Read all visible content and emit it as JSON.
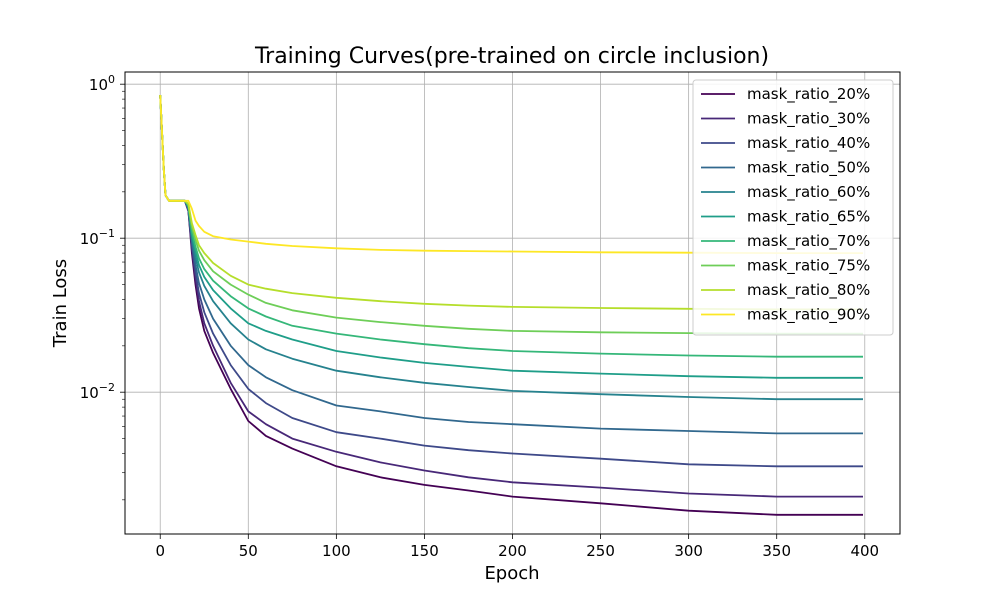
{
  "chart_data": {
    "type": "line",
    "title": "Training Curves(pre-trained on circle inclusion)",
    "xlabel": "Epoch",
    "ylabel": "Train Loss",
    "xlim": [
      -20,
      420
    ],
    "ylim": [
      0.0012,
      1.2
    ],
    "yscale": "log",
    "grid": true,
    "legend_position": "top-right",
    "x_ticks": [
      0,
      50,
      100,
      150,
      200,
      250,
      300,
      350,
      400
    ],
    "y_ticks": [
      {
        "value": 1,
        "mantissa": "10",
        "exponent": "0"
      },
      {
        "value": 0.1,
        "mantissa": "10",
        "exponent": "−1"
      },
      {
        "value": 0.01,
        "mantissa": "10",
        "exponent": "−2"
      }
    ],
    "x": [
      0,
      2,
      3,
      5,
      8,
      12,
      14,
      16,
      18,
      20,
      22,
      25,
      30,
      40,
      50,
      60,
      75,
      100,
      125,
      150,
      175,
      200,
      250,
      300,
      350,
      399
    ],
    "series": [
      {
        "name": "mask_ratio_20%",
        "color": "#440154",
        "values": [
          0.85,
          0.28,
          0.19,
          0.175,
          0.175,
          0.175,
          0.175,
          0.15,
          0.08,
          0.05,
          0.035,
          0.025,
          0.018,
          0.0105,
          0.0065,
          0.0052,
          0.0043,
          0.0033,
          0.0028,
          0.0025,
          0.0023,
          0.0021,
          0.0019,
          0.0017,
          0.0016,
          0.0016
        ]
      },
      {
        "name": "mask_ratio_30%",
        "color": "#482878",
        "values": [
          0.85,
          0.28,
          0.19,
          0.175,
          0.175,
          0.175,
          0.175,
          0.15,
          0.085,
          0.055,
          0.039,
          0.028,
          0.02,
          0.0115,
          0.0075,
          0.0062,
          0.005,
          0.0041,
          0.0035,
          0.0031,
          0.0028,
          0.0026,
          0.0024,
          0.0022,
          0.0021,
          0.0021
        ]
      },
      {
        "name": "mask_ratio_40%",
        "color": "#3e4989",
        "values": [
          0.85,
          0.28,
          0.19,
          0.175,
          0.175,
          0.175,
          0.175,
          0.152,
          0.09,
          0.06,
          0.044,
          0.033,
          0.024,
          0.015,
          0.0105,
          0.0085,
          0.0068,
          0.0055,
          0.005,
          0.0045,
          0.0042,
          0.004,
          0.0037,
          0.0034,
          0.0033,
          0.0033
        ]
      },
      {
        "name": "mask_ratio_50%",
        "color": "#31688e",
        "values": [
          0.85,
          0.28,
          0.19,
          0.175,
          0.175,
          0.175,
          0.175,
          0.155,
          0.095,
          0.067,
          0.051,
          0.04,
          0.03,
          0.02,
          0.015,
          0.0125,
          0.0103,
          0.0082,
          0.0075,
          0.0068,
          0.0064,
          0.0062,
          0.0058,
          0.0056,
          0.0054,
          0.0054
        ]
      },
      {
        "name": "mask_ratio_60%",
        "color": "#26828e",
        "values": [
          0.85,
          0.28,
          0.19,
          0.175,
          0.175,
          0.175,
          0.175,
          0.158,
          0.1,
          0.075,
          0.06,
          0.049,
          0.039,
          0.028,
          0.022,
          0.019,
          0.0165,
          0.0138,
          0.0125,
          0.0115,
          0.0108,
          0.0102,
          0.0097,
          0.0093,
          0.009,
          0.009
        ]
      },
      {
        "name": "mask_ratio_65%",
        "color": "#1f9e89",
        "values": [
          0.85,
          0.28,
          0.19,
          0.175,
          0.175,
          0.175,
          0.175,
          0.16,
          0.105,
          0.082,
          0.067,
          0.056,
          0.046,
          0.035,
          0.028,
          0.025,
          0.022,
          0.0185,
          0.0168,
          0.0155,
          0.0146,
          0.0138,
          0.0132,
          0.0127,
          0.0124,
          0.0124
        ]
      },
      {
        "name": "mask_ratio_70%",
        "color": "#35b779",
        "values": [
          0.85,
          0.28,
          0.19,
          0.175,
          0.175,
          0.175,
          0.175,
          0.162,
          0.11,
          0.088,
          0.074,
          0.063,
          0.053,
          0.042,
          0.035,
          0.031,
          0.027,
          0.024,
          0.022,
          0.0205,
          0.0193,
          0.0185,
          0.0178,
          0.0173,
          0.017,
          0.017
        ]
      },
      {
        "name": "mask_ratio_75%",
        "color": "#6ece58",
        "values": [
          0.85,
          0.28,
          0.19,
          0.175,
          0.175,
          0.175,
          0.175,
          0.165,
          0.118,
          0.097,
          0.083,
          0.072,
          0.061,
          0.05,
          0.043,
          0.038,
          0.034,
          0.0305,
          0.0285,
          0.027,
          0.0258,
          0.025,
          0.0245,
          0.0242,
          0.024,
          0.024
        ]
      },
      {
        "name": "mask_ratio_80%",
        "color": "#b5de2b",
        "values": [
          0.85,
          0.28,
          0.19,
          0.175,
          0.175,
          0.175,
          0.175,
          0.167,
          0.125,
          0.105,
          0.09,
          0.08,
          0.069,
          0.057,
          0.05,
          0.047,
          0.044,
          0.041,
          0.039,
          0.0375,
          0.0365,
          0.0358,
          0.0352,
          0.0348,
          0.0345,
          0.0345
        ]
      },
      {
        "name": "mask_ratio_90%",
        "color": "#fde725",
        "values": [
          0.85,
          0.28,
          0.19,
          0.175,
          0.175,
          0.175,
          0.175,
          0.175,
          0.155,
          0.13,
          0.12,
          0.11,
          0.103,
          0.098,
          0.095,
          0.092,
          0.089,
          0.086,
          0.084,
          0.083,
          0.0825,
          0.082,
          0.081,
          0.0805,
          0.08,
          0.08
        ]
      }
    ]
  }
}
